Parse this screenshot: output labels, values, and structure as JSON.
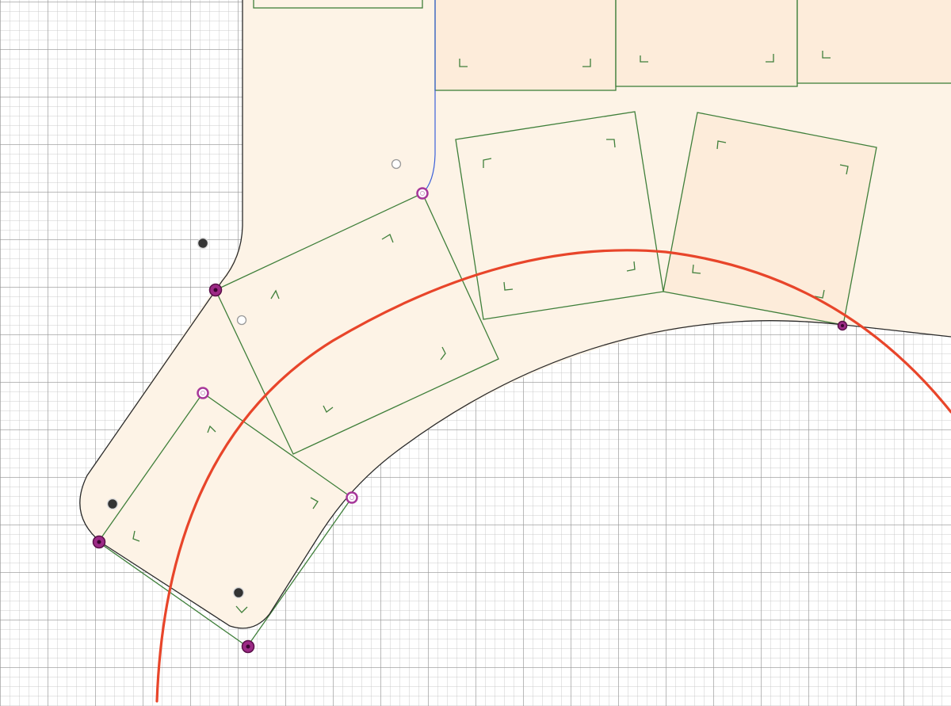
{
  "view": {
    "app_type": "cad-sketch-canvas",
    "grid": true,
    "colors": {
      "background": "#ffffff",
      "plate_fill": "#fdf3e6",
      "key_frame": "#3f7f3a",
      "outline": "#2a2a2a",
      "construction_arc": "#e8452a",
      "constraint_point": "#9c2a86",
      "selected_edge": "#3a5fd9"
    }
  },
  "sketch": {
    "key_frame_count": 8,
    "constraint_point_count": 7,
    "reference_point_count": 5,
    "icons": [
      "constraint-point-icon",
      "sketch-point-icon",
      "center-point-icon"
    ]
  }
}
